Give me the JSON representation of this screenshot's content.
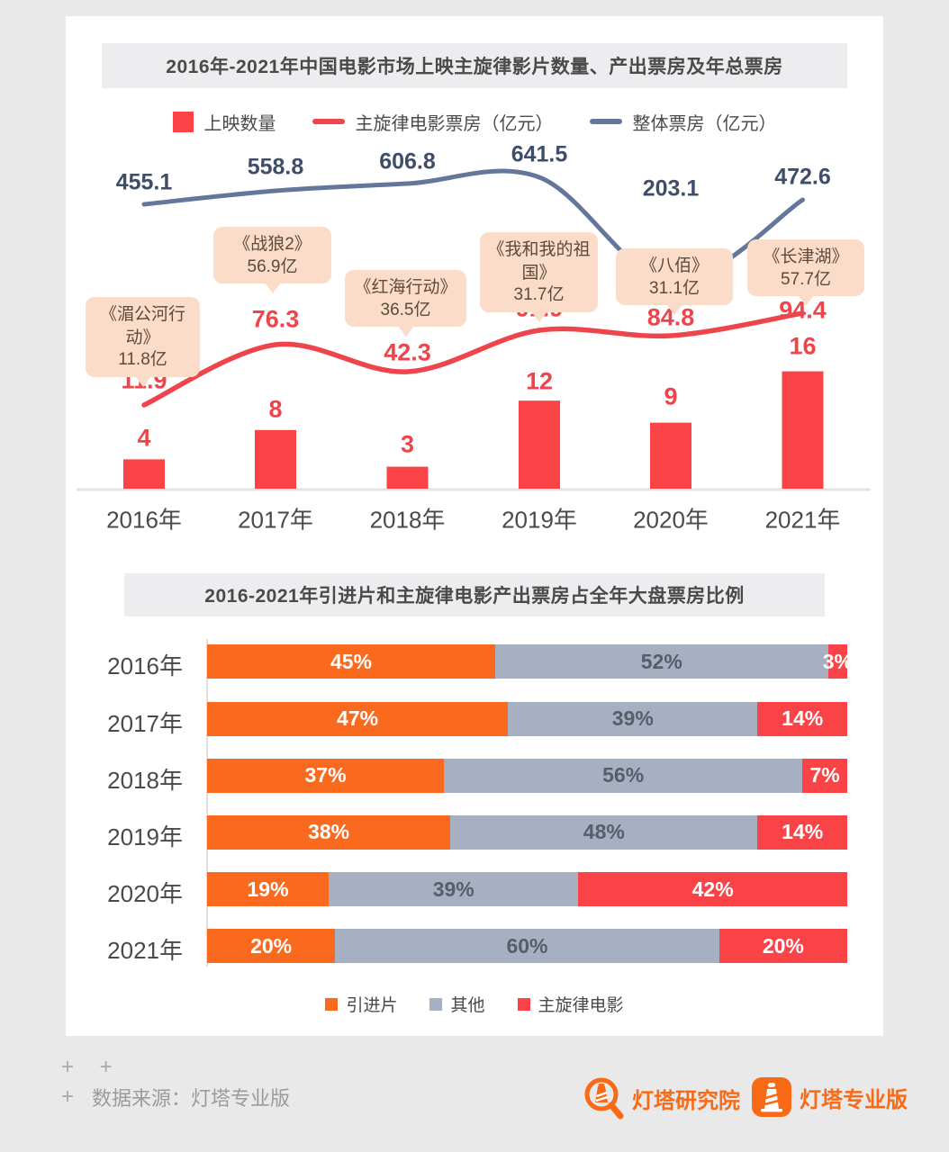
{
  "page": {
    "background": "#e9e9e9",
    "card_background": "#ffffff"
  },
  "chart_data": [
    {
      "type": "bar",
      "subtype": "combo-bar-line",
      "title": "2016年-2021年中国电影市场上映主旋律影片数量、产出票房及年总票房",
      "categories": [
        "2016年",
        "2017年",
        "2018年",
        "2019年",
        "2020年",
        "2021年"
      ],
      "series": [
        {
          "name": "上映数量",
          "type": "bar",
          "color": "#fa4347",
          "values": [
            4,
            8,
            3,
            12,
            9,
            16
          ]
        },
        {
          "name": "主旋律电影票房（亿元）",
          "type": "line",
          "color": "#ee454d",
          "values": [
            11.9,
            76.3,
            42.3,
            91.9,
            84.8,
            94.4
          ]
        },
        {
          "name": "整体票房（亿元）",
          "type": "line",
          "color": "#64779b",
          "values": [
            455.1,
            558.8,
            606.8,
            641.5,
            203.1,
            472.6
          ]
        }
      ],
      "annotations": [
        {
          "title": "《湄公河行动》",
          "value": "11.8亿"
        },
        {
          "title": "《战狼2》",
          "value": "56.9亿"
        },
        {
          "title": "《红海行动》",
          "value": "36.5亿"
        },
        {
          "title": "《我和我的祖国》",
          "value": "31.7亿"
        },
        {
          "title": "《八佰》",
          "value": "31.1亿"
        },
        {
          "title": "《长津湖》",
          "value": "57.7亿"
        }
      ],
      "legend_position": "top",
      "grid": false
    },
    {
      "type": "bar",
      "subtype": "stacked-horizontal",
      "title": "2016-2021年引进片和主旋律电影产出票房占全年大盘票房比例",
      "categories": [
        "2016年",
        "2017年",
        "2018年",
        "2019年",
        "2020年",
        "2021年"
      ],
      "unit": "%",
      "series": [
        {
          "name": "引进片",
          "color": "#fa6a1e",
          "values": [
            45,
            47,
            37,
            38,
            19,
            20
          ]
        },
        {
          "name": "其他",
          "color": "#a6b0c2",
          "values": [
            52,
            39,
            56,
            48,
            39,
            60
          ]
        },
        {
          "name": "主旋律电影",
          "color": "#fa4347",
          "values": [
            3,
            14,
            7,
            14,
            42,
            20
          ]
        }
      ],
      "legend_position": "bottom",
      "xlim": [
        0,
        100
      ]
    }
  ],
  "footer": {
    "plus_row": "+ +",
    "source_plus": "+",
    "source_text": "数据来源：灯塔专业版",
    "logos": [
      {
        "label": "灯塔研究院"
      },
      {
        "label": "灯塔专业版"
      }
    ]
  }
}
